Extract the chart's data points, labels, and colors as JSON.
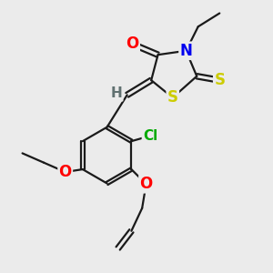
{
  "background_color": "#ebebeb",
  "bond_color": "#1a1a1a",
  "bond_width": 1.6,
  "atom_colors": {
    "O": "#ff0000",
    "N": "#0000ee",
    "S": "#cccc00",
    "Cl": "#00aa00",
    "C": "#1a1a1a",
    "H": "#607070"
  },
  "font_size": 10,
  "fig_size": [
    3.0,
    3.0
  ],
  "dpi": 100
}
